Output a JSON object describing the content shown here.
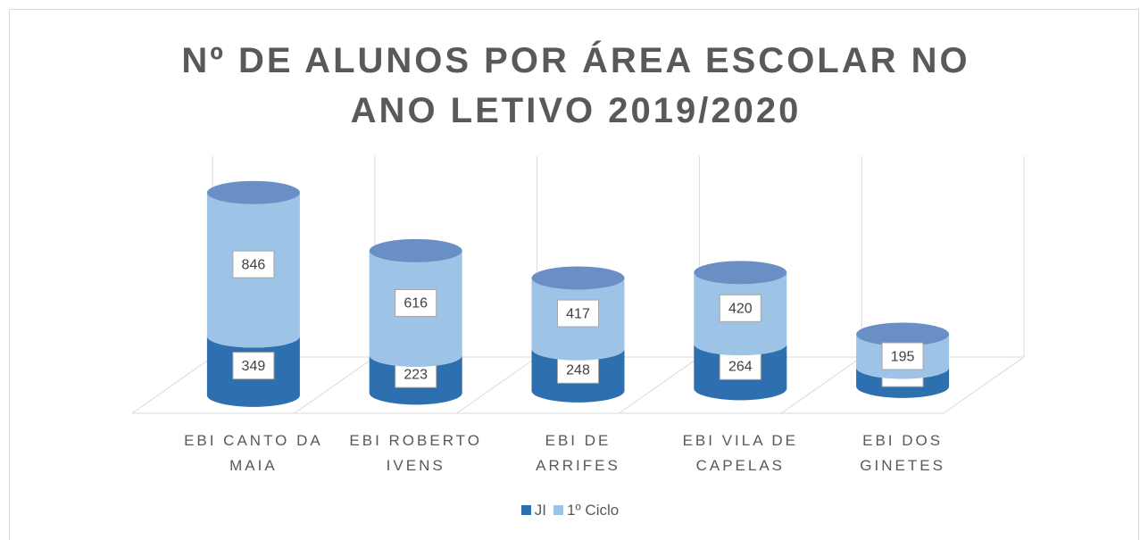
{
  "chart_data": {
    "type": "bar3d_stacked",
    "title": "Nº DE ALUNOS POR ÁREA ESCOLAR NO ANO LETIVO 2019/2020",
    "categories": [
      "EBI CANTO DA MAIA",
      "EBI ROBERTO IVENS",
      "EBI DE ARRIFES",
      "EBI VILA DE CAPELAS",
      "EBI DOS GINETES"
    ],
    "series": [
      {
        "name": "JI",
        "color": "#2e6fb0",
        "values": [
          349,
          223,
          248,
          264,
          112
        ]
      },
      {
        "name": "1º Ciclo",
        "color": "#9dc3e6",
        "values": [
          846,
          616,
          417,
          420,
          195
        ]
      }
    ],
    "legend": "bottom"
  }
}
